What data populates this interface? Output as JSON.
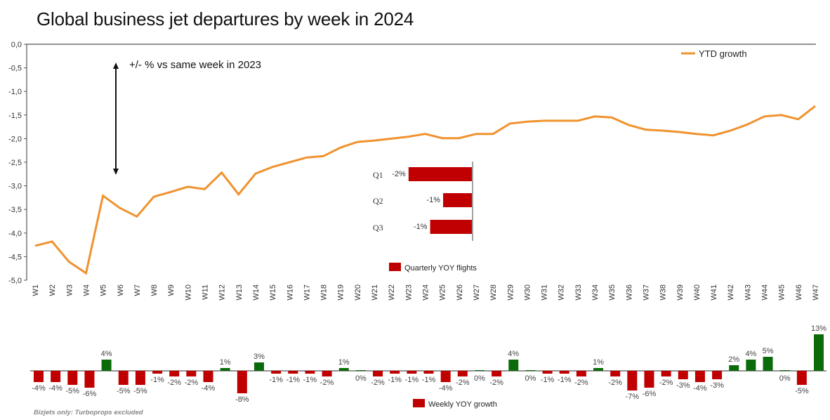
{
  "chart_data": [
    {
      "id": "ytd",
      "type": "line",
      "title": "Global business jet departures by week in 2024",
      "annotation": "+/- %  vs same week in 2023",
      "legend": {
        "label": "YTD growth",
        "position": "top-right"
      },
      "color": "#F0922E",
      "ylim": [
        -5.0,
        0.0
      ],
      "yticks": [
        0.0,
        -0.5,
        -1.0,
        -1.5,
        -2.0,
        -2.5,
        -3.0,
        -3.5,
        -4.0,
        -4.5,
        -5.0
      ],
      "ytick_labels": [
        "0,0",
        "-0,5",
        "-1,0",
        "-1,5",
        "-2,0",
        "-2,5",
        "-3,0",
        "-3,5",
        "-4,0",
        "-4,5",
        "-5,0"
      ],
      "grid": false,
      "categories": [
        "W1",
        "W2",
        "W3",
        "W4",
        "W5",
        "W6",
        "W7",
        "W8",
        "W9",
        "W10",
        "W11",
        "W12",
        "W13",
        "W14",
        "W15",
        "W16",
        "W17",
        "W18",
        "W19",
        "W20",
        "W21",
        "W22",
        "W23",
        "W24",
        "W25",
        "W26",
        "W27",
        "W28",
        "W29",
        "W30",
        "W31",
        "W32",
        "W33",
        "W34",
        "W35",
        "W36",
        "W37",
        "W38",
        "W39",
        "W40",
        "W41",
        "W42",
        "W43",
        "W44",
        "W45",
        "W46",
        "W47"
      ],
      "values": [
        -4.27,
        -4.18,
        -4.61,
        -4.85,
        -3.21,
        -3.47,
        -3.65,
        -3.23,
        -3.13,
        -3.02,
        -3.07,
        -2.72,
        -3.18,
        -2.74,
        -2.6,
        -2.5,
        -2.4,
        -2.37,
        -2.19,
        -2.07,
        -2.04,
        -2.0,
        -1.96,
        -1.9,
        -1.99,
        -1.99,
        -1.9,
        -1.9,
        -1.68,
        -1.64,
        -1.62,
        -1.62,
        -1.62,
        -1.53,
        -1.55,
        -1.71,
        -1.81,
        -1.83,
        -1.86,
        -1.9,
        -1.93,
        -1.83,
        -1.7,
        -1.53,
        -1.5,
        -1.59,
        -1.31
      ]
    },
    {
      "id": "quarterly",
      "type": "bar",
      "orientation": "horizontal",
      "legend": {
        "label": "Quarterly YOY flights",
        "position": "bottom"
      },
      "color": "#C00000",
      "categories": [
        "Q1",
        "Q2",
        "Q3"
      ],
      "values": [
        -2.2,
        -1.0,
        -1.45
      ],
      "labels": [
        "-2%",
        "-1%",
        "-1%"
      ]
    },
    {
      "id": "weekly",
      "type": "bar",
      "legend": {
        "label": "Weekly YOY growth",
        "position": "bottom"
      },
      "colors": {
        "positive": "#0B6B0B",
        "negative": "#C00000"
      },
      "categories": [
        "W1",
        "W2",
        "W3",
        "W4",
        "W5",
        "W6",
        "W7",
        "W8",
        "W9",
        "W10",
        "W11",
        "W12",
        "W13",
        "W14",
        "W15",
        "W16",
        "W17",
        "W18",
        "W19",
        "W20",
        "W21",
        "W22",
        "W23",
        "W24",
        "W25",
        "W26",
        "W27",
        "W28",
        "W29",
        "W30",
        "W31",
        "W32",
        "W33",
        "W34",
        "W35",
        "W36",
        "W37",
        "W38",
        "W39",
        "W40",
        "W41",
        "W42",
        "W43",
        "W44",
        "W45",
        "W46",
        "W47"
      ],
      "values": [
        -4,
        -4,
        -5,
        -6,
        4,
        -5,
        -5,
        -1,
        -2,
        -2,
        -4,
        1,
        -8,
        3,
        -1,
        -1,
        -1,
        -2,
        1,
        0,
        -2,
        -1,
        -1,
        -1,
        -4,
        -2,
        0,
        -2,
        4,
        0,
        -1,
        -1,
        -2,
        1,
        -2,
        -7,
        -6,
        -2,
        -3,
        -4,
        -3,
        2,
        4,
        5,
        0,
        -5,
        13
      ],
      "labels": [
        "-4%",
        "-4%",
        "-5%",
        "-6%",
        "4%",
        "-5%",
        "-5%",
        "-1%",
        "-2%",
        "-2%",
        "-4%",
        "1%",
        "-8%",
        "3%",
        "-1%",
        "-1%",
        "-1%",
        "-2%",
        "1%",
        "0%",
        "-2%",
        "-1%",
        "-1%",
        "-1%",
        "-4%",
        "-2%",
        "0%",
        "-2%",
        "4%",
        "0%",
        "-1%",
        "-1%",
        "-2%",
        "1%",
        "-2%",
        "-7%",
        "-6%",
        "-2%",
        "-3%",
        "-4%",
        "-3%",
        "2%",
        "4%",
        "5%",
        "0%",
        "-5%",
        "13%"
      ]
    }
  ],
  "footnote": "Bizjets only: Turboprops excluded"
}
